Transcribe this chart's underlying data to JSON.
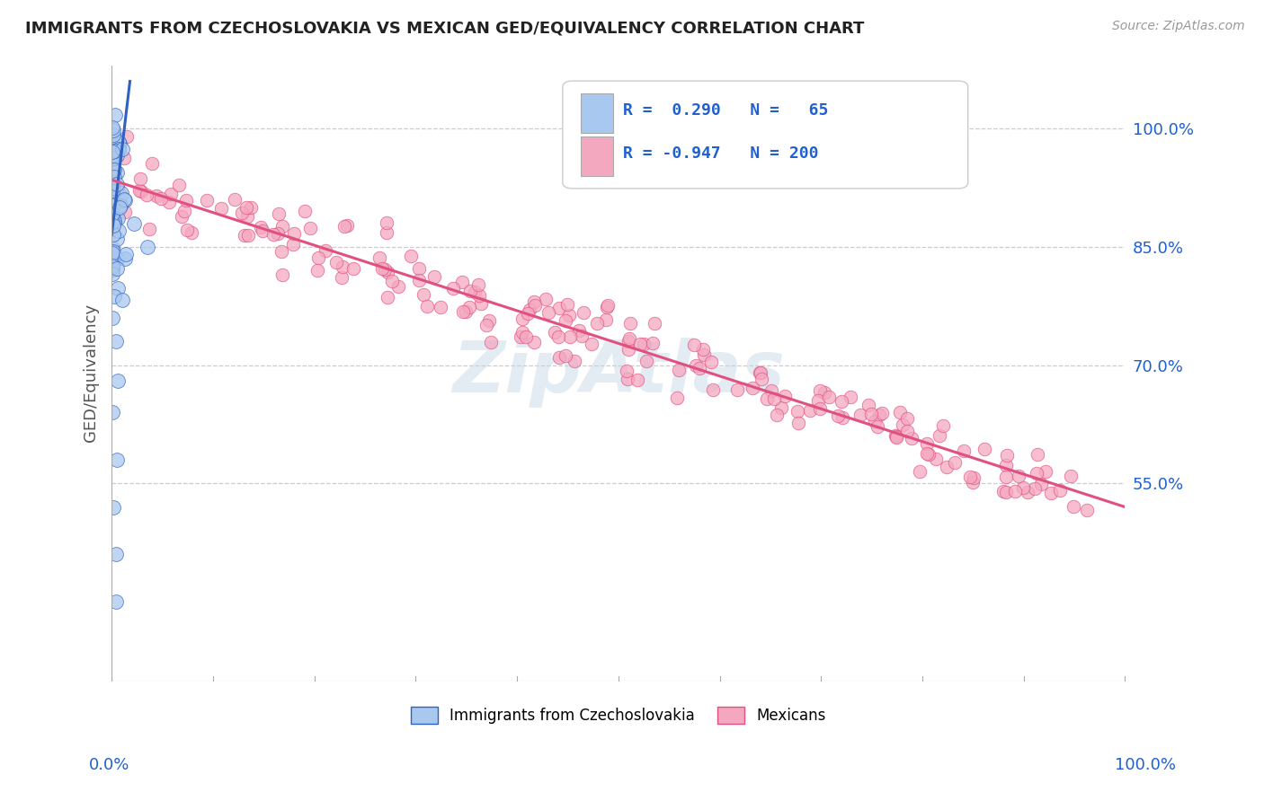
{
  "title": "IMMIGRANTS FROM CZECHOSLOVAKIA VS MEXICAN GED/EQUIVALENCY CORRELATION CHART",
  "source": "Source: ZipAtlas.com",
  "ylabel": "GED/Equivalency",
  "ytick_vals": [
    1.0,
    0.85,
    0.7,
    0.55
  ],
  "ytick_labels": [
    "100.0%",
    "85.0%",
    "70.0%",
    "55.0%"
  ],
  "blue_color": "#a8c8f0",
  "pink_color": "#f4a8c0",
  "blue_line_color": "#3060c0",
  "pink_line_color": "#e05080",
  "legend_text_color": "#2060d0",
  "background_color": "#ffffff",
  "grid_color": "#cccccc",
  "title_color": "#222222",
  "source_color": "#999999",
  "xlim": [
    0.0,
    1.0
  ],
  "ylim": [
    0.3,
    1.08
  ],
  "blue_line_x0": 0.0,
  "blue_line_y0": 0.865,
  "blue_line_x1": 0.018,
  "blue_line_y1": 1.06,
  "pink_line_x0": 0.0,
  "pink_line_y0": 0.935,
  "pink_line_x1": 1.0,
  "pink_line_y1": 0.52
}
